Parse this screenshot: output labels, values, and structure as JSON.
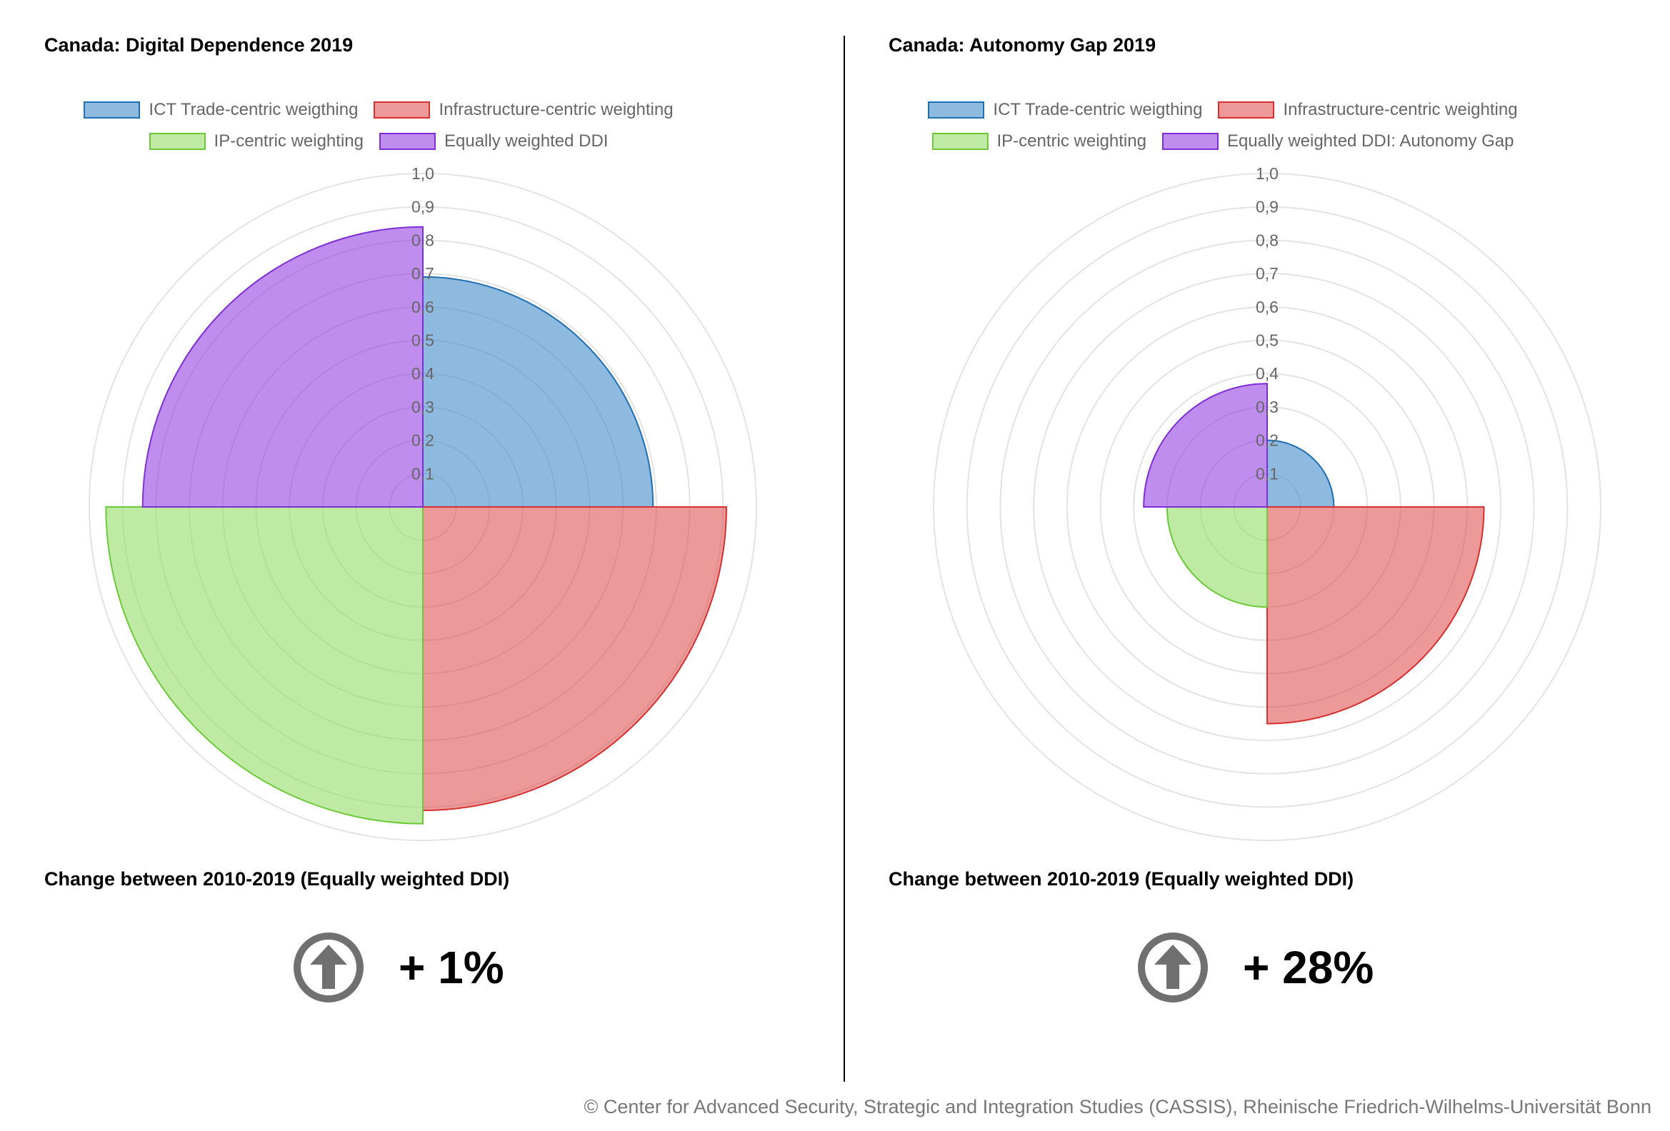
{
  "footer": {
    "copyright": "© Center for Advanced Security, Strategic and Integration Studies (CASSIS), Rheinische Friedrich-Wilhelms-Universität Bonn"
  },
  "colors": {
    "ict": {
      "fill": "rgba(69,140,201,0.60)",
      "stroke": "#1f6fb4"
    },
    "infra": {
      "fill": "rgba(226,80,80,0.58)",
      "stroke": "#d62f2f"
    },
    "ip": {
      "fill": "rgba(152,221,106,0.62)",
      "stroke": "#6cc93a"
    },
    "ddi": {
      "fill": "rgba(151,71,227,0.62)",
      "stroke": "#7e2ed6"
    },
    "grid": "#e3e3e3",
    "tick": "#666666",
    "arrow": "#707070"
  },
  "panels": [
    {
      "change": {
        "title": "Change between 2010-2019 (Equally weighted DDI)",
        "value": "+ 1%",
        "icon": "arrow-up-circle-icon"
      }
    },
    {
      "change": {
        "title": "Change between 2010-2019 (Equally weighted DDI)",
        "value": "+ 28%",
        "icon": "arrow-up-circle-icon"
      }
    }
  ],
  "chart_data": [
    {
      "type": "polar-area",
      "title": "Canada: Digital Dependence 2019",
      "legend_rows": [
        [
          "ICT Trade-centric weigthing",
          "Infrastructure-centric weighting"
        ],
        [
          "IP-centric weighting",
          "Equally weighted DDI"
        ]
      ],
      "legend_placement": "top",
      "categories": [
        "ICT Trade-centric weigthing",
        "Infrastructure-centric weighting",
        "IP-centric weighting",
        "Equally weighted DDI"
      ],
      "values": [
        0.69,
        0.91,
        0.95,
        0.84
      ],
      "series_keys": [
        "ict",
        "infra",
        "ip",
        "ddi"
      ],
      "r_range": [
        0,
        1.0
      ],
      "r_ticks": [
        "0,1",
        "0,2",
        "0,3",
        "0,4",
        "0,5",
        "0,6",
        "0,7",
        "0,8",
        "0,9",
        "1,0"
      ],
      "grid": true
    },
    {
      "type": "polar-area",
      "title": "Canada: Autonomy Gap 2019",
      "legend_rows": [
        [
          "ICT Trade-centric weigthing",
          "Infrastructure-centric weighting"
        ],
        [
          "IP-centric weighting",
          "Equally weighted DDI: Autonomy Gap"
        ]
      ],
      "legend_placement": "top",
      "categories": [
        "ICT Trade-centric weigthing",
        "Infrastructure-centric weighting",
        "IP-centric weighting",
        "Equally weighted DDI: Autonomy Gap"
      ],
      "values": [
        0.2,
        0.65,
        0.3,
        0.37
      ],
      "series_keys": [
        "ict",
        "infra",
        "ip",
        "ddi"
      ],
      "r_range": [
        0,
        1.0
      ],
      "r_ticks": [
        "0,1",
        "0,2",
        "0,3",
        "0,4",
        "0,5",
        "0,6",
        "0,7",
        "0,8",
        "0,9",
        "1,0"
      ],
      "grid": true
    }
  ]
}
